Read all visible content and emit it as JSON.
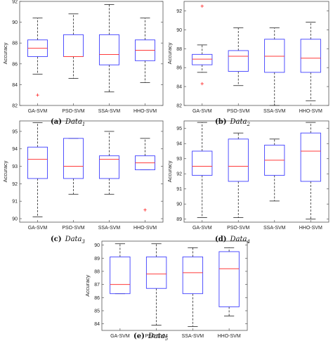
{
  "chart_data": [
    {
      "type": "box",
      "panel_letter": "(a)",
      "caption_name": "Data",
      "caption_sub": "1",
      "ylabel": "Accuracy",
      "ylim": [
        82,
        92
      ],
      "yticks": [
        82,
        84,
        86,
        88,
        90,
        92
      ],
      "categories": [
        "GA-SVM",
        "PSO-SVM",
        "SSA-SVM",
        "HHO-SVM"
      ],
      "boxes": [
        {
          "whisker_low": 85.0,
          "q1": 86.7,
          "median": 87.5,
          "q3": 88.3,
          "whisker_high": 90.4,
          "outliers": [
            83.0
          ]
        },
        {
          "whisker_low": 84.6,
          "q1": 86.7,
          "median": 86.7,
          "q3": 88.8,
          "whisker_high": 90.8,
          "outliers": []
        },
        {
          "whisker_low": 83.3,
          "q1": 85.9,
          "median": 86.9,
          "q3": 88.8,
          "whisker_high": 91.7,
          "outliers": []
        },
        {
          "whisker_low": 84.2,
          "q1": 86.3,
          "median": 87.3,
          "q3": 88.3,
          "whisker_high": 90.4,
          "outliers": []
        }
      ]
    },
    {
      "type": "box",
      "panel_letter": "(b)",
      "caption_name": "Data",
      "caption_sub": "2",
      "ylabel": "Accuracy",
      "ylim": [
        82,
        93
      ],
      "yticks": [
        82,
        84,
        86,
        88,
        90,
        92
      ],
      "categories": [
        "GA-SVM",
        "PSO-SVM",
        "SSA-SVM",
        "HHO-SVM"
      ],
      "boxes": [
        {
          "whisker_low": 85.5,
          "q1": 86.3,
          "median": 86.9,
          "q3": 87.4,
          "whisker_high": 88.4,
          "outliers": [
            84.3,
            92.5
          ]
        },
        {
          "whisker_low": 84.1,
          "q1": 85.6,
          "median": 87.2,
          "q3": 87.8,
          "whisker_high": 90.2,
          "outliers": []
        },
        {
          "whisker_low": 82.0,
          "q1": 85.5,
          "median": 87.2,
          "q3": 89.0,
          "whisker_high": 90.2,
          "outliers": []
        },
        {
          "whisker_low": 82.5,
          "q1": 85.5,
          "median": 87.0,
          "q3": 89.0,
          "whisker_high": 90.8,
          "outliers": []
        }
      ]
    },
    {
      "type": "box",
      "panel_letter": "(c)",
      "caption_name": "Data",
      "caption_sub": "3",
      "ylabel": "Accuracy",
      "ylim": [
        89.8,
        95.6
      ],
      "yticks": [
        90,
        91,
        92,
        93,
        94,
        95
      ],
      "categories": [
        "GA-SVM",
        "PSO-SVM",
        "SSA-SVM",
        "HHO-SVM"
      ],
      "boxes": [
        {
          "whisker_low": 90.1,
          "q1": 92.3,
          "median": 93.4,
          "q3": 94.1,
          "whisker_high": 95.5,
          "outliers": []
        },
        {
          "whisker_low": 91.4,
          "q1": 92.3,
          "median": 93.0,
          "q3": 94.6,
          "whisker_high": 94.6,
          "outliers": []
        },
        {
          "whisker_low": 91.4,
          "q1": 92.3,
          "median": 93.4,
          "q3": 93.6,
          "whisker_high": 95.0,
          "outliers": []
        },
        {
          "whisker_low": 92.8,
          "q1": 92.8,
          "median": 93.2,
          "q3": 93.6,
          "whisker_high": 94.6,
          "outliers": [
            90.5
          ]
        }
      ]
    },
    {
      "type": "box",
      "panel_letter": "(d)",
      "caption_name": "Data",
      "caption_sub": "4",
      "ylabel": "Accuracy",
      "ylim": [
        88.8,
        95.5
      ],
      "yticks": [
        89,
        90,
        91,
        92,
        93,
        94,
        95
      ],
      "categories": [
        "GA-SVM",
        "PSO-SVM",
        "SSA-SVM",
        "HHO-SVM"
      ],
      "boxes": [
        {
          "whisker_low": 89.1,
          "q1": 91.9,
          "median": 92.5,
          "q3": 93.5,
          "whisker_high": 95.4,
          "outliers": []
        },
        {
          "whisker_low": 89.1,
          "q1": 91.5,
          "median": 92.5,
          "q3": 94.3,
          "whisker_high": 94.7,
          "outliers": []
        },
        {
          "whisker_low": 90.2,
          "q1": 91.9,
          "median": 92.9,
          "q3": 93.9,
          "whisker_high": 94.3,
          "outliers": []
        },
        {
          "whisker_low": 89.0,
          "q1": 91.5,
          "median": 93.5,
          "q3": 94.7,
          "whisker_high": 95.4,
          "outliers": []
        }
      ]
    },
    {
      "type": "box",
      "panel_letter": "(e)",
      "caption_name": "Data",
      "caption_sub": "5",
      "ylabel": "Accuracy",
      "ylim": [
        83.5,
        90.3
      ],
      "yticks": [
        84,
        85,
        86,
        87,
        88,
        89,
        90
      ],
      "categories": [
        "GA-SVM",
        "PSO-SVM",
        "SSA-SVM",
        "HHO-SVM"
      ],
      "boxes": [
        {
          "whisker_low": 86.3,
          "q1": 86.3,
          "median": 87.0,
          "q3": 89.1,
          "whisker_high": 90.1,
          "outliers": []
        },
        {
          "whisker_low": 83.9,
          "q1": 86.7,
          "median": 87.8,
          "q3": 89.1,
          "whisker_high": 90.1,
          "outliers": []
        },
        {
          "whisker_low": 83.8,
          "q1": 86.3,
          "median": 87.9,
          "q3": 89.1,
          "whisker_high": 89.8,
          "outliers": []
        },
        {
          "whisker_low": 84.6,
          "q1": 85.3,
          "median": 88.2,
          "q3": 89.5,
          "whisker_high": 89.8,
          "outliers": []
        }
      ]
    }
  ],
  "colors": {
    "box": "#3f3fff",
    "median": "#ff3b3b",
    "whisker": "#222222",
    "outlier": "#ff2a2a",
    "axis": "#555555"
  }
}
